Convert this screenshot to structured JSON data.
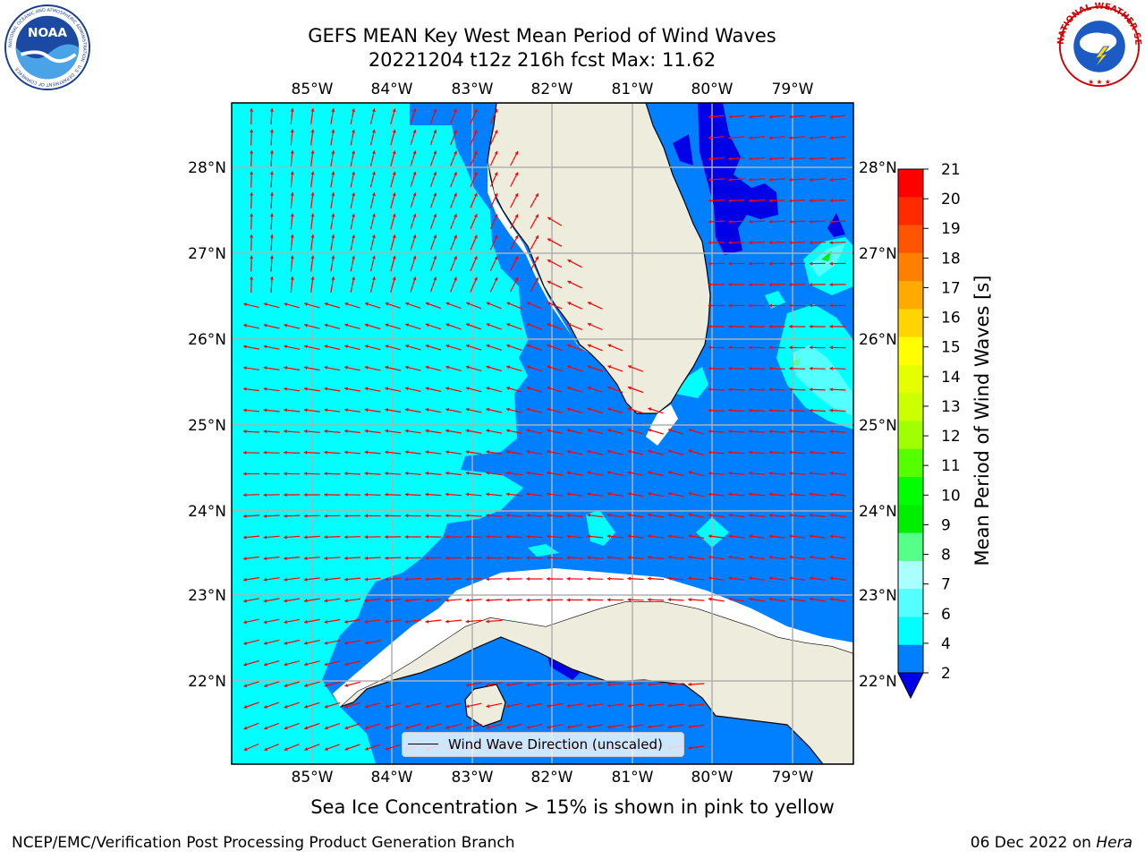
{
  "header": {
    "title_line1": "GEFS MEAN Key West Mean Period of Wind Waves",
    "title_line2": "20221204 t12z 216h fcst   Max: 11.62"
  },
  "logos": {
    "left": {
      "name": "noaa-logo",
      "text": "NOAA",
      "ring_text": "NATIONAL OCEANIC AND ATMOSPHERIC ADMINISTRATION · U.S. DEPARTMENT OF COMMERCE"
    },
    "right": {
      "name": "nws-logo",
      "ring_text": "NATIONAL WEATHER SERVICE"
    }
  },
  "map": {
    "lon_labels": [
      "85°W",
      "84°W",
      "83°W",
      "82°W",
      "81°W",
      "80°W",
      "79°W"
    ],
    "lat_labels": [
      "28°N",
      "27°N",
      "26°N",
      "25°N",
      "24°N",
      "23°N",
      "22°N"
    ],
    "extent": {
      "lon_min": -86.0,
      "lon_max": -78.3,
      "lat_min": 21.0,
      "lat_max": 28.75
    },
    "grid": true,
    "arrow_color": "#ff0000",
    "land_color": "#eeecdd",
    "legend_label": "Wind Wave Direction (unscaled)"
  },
  "colorbar": {
    "label": "Mean Period of Wind Waves [s]",
    "ticks": [
      "21",
      "20",
      "19",
      "18",
      "17",
      "16",
      "15",
      "14",
      "13",
      "12",
      "11",
      "10",
      "9",
      "8",
      "7",
      "6",
      "4",
      "2"
    ],
    "colors": [
      "#ff0000",
      "#ff2a00",
      "#ff5500",
      "#ff7f00",
      "#ffaa00",
      "#ffd400",
      "#ffff00",
      "#e6ff00",
      "#ccff00",
      "#a0ff00",
      "#55ff00",
      "#00ff00",
      "#00ee00",
      "#55ff88",
      "#aaffff",
      "#55ffff",
      "#00ffff",
      "#0080ff",
      "#0000e6"
    ],
    "under_color": "#0000e6"
  },
  "footer": {
    "subtitle": "Sea Ice Concentration > 15% is shown in pink to yellow",
    "left": "NCEP/EMC/Verification Post Processing Product Generation Branch",
    "date": "06 Dec 2022 on",
    "machine": "Hera"
  }
}
